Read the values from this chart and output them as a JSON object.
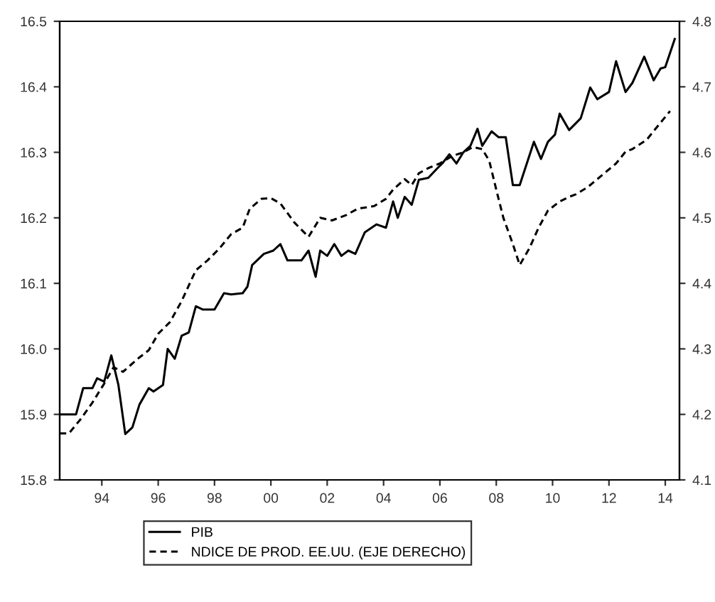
{
  "chart_data": {
    "type": "line",
    "legend": "bottom",
    "grid": false,
    "xlim": [
      "1993-01",
      "2015-01"
    ],
    "xticks": [
      {
        "value": "1994-07",
        "label": "94"
      },
      {
        "value": "1996-07",
        "label": "96"
      },
      {
        "value": "1998-07",
        "label": "98"
      },
      {
        "value": "2000-07",
        "label": "00"
      },
      {
        "value": "2002-07",
        "label": "02"
      },
      {
        "value": "2004-07",
        "label": "04"
      },
      {
        "value": "2006-07",
        "label": "06"
      },
      {
        "value": "2008-07",
        "label": "08"
      },
      {
        "value": "2010-07",
        "label": "10"
      },
      {
        "value": "2012-07",
        "label": "12"
      },
      {
        "value": "2014-07",
        "label": "14"
      }
    ],
    "ylim": [
      15.8,
      16.5
    ],
    "yticks": [
      {
        "value": 15.8,
        "label": "15.8"
      },
      {
        "value": 15.9,
        "label": "15.9"
      },
      {
        "value": 16.0,
        "label": "16.0"
      },
      {
        "value": 16.1,
        "label": "16.1"
      },
      {
        "value": 16.2,
        "label": "16.2"
      },
      {
        "value": 16.3,
        "label": "16.3"
      },
      {
        "value": 16.4,
        "label": "16.4"
      },
      {
        "value": 16.5,
        "label": "16.5"
      }
    ],
    "y2lim": [
      4.1,
      4.8
    ],
    "y2ticks": [
      4.1,
      4.2,
      4.3,
      4.4,
      4.5,
      4.6,
      4.7,
      4.8
    ],
    "series": [
      {
        "name": "PIB",
        "color": "#000000",
        "line_style": "solid",
        "x": [
          "1993-01",
          "1993-08",
          "1993-11",
          "1994-03",
          "1994-05",
          "1994-08",
          "1994-11",
          "1995-02",
          "1995-05",
          "1995-08",
          "1995-11",
          "1996-03",
          "1996-05",
          "1996-09",
          "1996-11",
          "1997-02",
          "1997-05",
          "1997-08",
          "1997-11",
          "1998-02",
          "1998-07",
          "1998-11",
          "1999-02",
          "1999-07",
          "1999-09",
          "1999-11",
          "2000-04",
          "2000-08",
          "2000-11",
          "2001-02",
          "2001-08",
          "2001-11",
          "2002-02",
          "2002-04",
          "2002-07",
          "2002-10",
          "2003-01",
          "2003-04",
          "2003-07",
          "2003-11",
          "2004-04",
          "2004-08",
          "2004-11",
          "2005-01",
          "2005-04",
          "2005-07",
          "2005-10",
          "2006-02",
          "2006-06",
          "2006-08",
          "2006-11",
          "2007-02",
          "2007-05",
          "2007-08",
          "2007-11",
          "2008-01",
          "2008-05",
          "2008-08",
          "2008-11",
          "2009-02",
          "2009-05",
          "2009-08",
          "2009-11",
          "2010-02",
          "2010-05",
          "2010-08",
          "2010-10",
          "2011-02",
          "2011-07",
          "2011-11",
          "2012-02",
          "2012-07",
          "2012-10",
          "2013-02",
          "2013-05",
          "2013-10",
          "2014-02",
          "2014-05",
          "2014-07",
          "2014-11"
        ],
        "values": [
          15.9,
          15.9,
          15.94,
          15.94,
          15.955,
          15.95,
          15.99,
          15.945,
          15.87,
          15.88,
          15.915,
          15.94,
          15.935,
          15.945,
          16.0,
          15.985,
          16.02,
          16.025,
          16.065,
          16.06,
          16.06,
          16.085,
          16.083,
          16.085,
          16.095,
          16.128,
          16.145,
          16.15,
          16.16,
          16.135,
          16.135,
          16.15,
          16.11,
          16.15,
          16.142,
          16.16,
          16.142,
          16.15,
          16.145,
          16.178,
          16.19,
          16.185,
          16.225,
          16.2,
          16.232,
          16.22,
          16.258,
          16.261,
          16.276,
          16.283,
          16.297,
          16.283,
          16.3,
          16.31,
          16.336,
          16.31,
          16.332,
          16.323,
          16.323,
          16.25,
          16.25,
          16.283,
          16.316,
          16.29,
          16.316,
          16.327,
          16.359,
          16.334,
          16.352,
          16.399,
          16.381,
          16.392,
          16.439,
          16.392,
          16.406,
          16.446,
          16.41,
          16.428,
          16.43,
          16.473
        ]
      },
      {
        "name": "NDICE DE PROD. EE.UU. (EJE DERECHO)",
        "color": "#000000",
        "line_style": "dashed",
        "axis": "y2",
        "x": [
          "1993-01",
          "1993-05",
          "1993-10",
          "1994-03",
          "1994-08",
          "1994-12",
          "1995-04",
          "1995-11",
          "1996-03",
          "1996-07",
          "1996-12",
          "1997-05",
          "1997-11",
          "1998-04",
          "1998-09",
          "1999-02",
          "1999-07",
          "1999-10",
          "2000-03",
          "2000-07",
          "2000-11",
          "2001-05",
          "2001-11",
          "2002-04",
          "2002-09",
          "2003-03",
          "2003-08",
          "2004-03",
          "2004-08",
          "2004-11",
          "2005-04",
          "2005-07",
          "2005-10",
          "2006-02",
          "2006-07",
          "2006-12",
          "2007-05",
          "2007-09",
          "2008-01",
          "2008-04",
          "2008-07",
          "2008-10",
          "2009-02",
          "2009-05",
          "2009-09",
          "2010-01",
          "2010-05",
          "2010-10",
          "2011-02",
          "2011-05",
          "2011-10",
          "2012-04",
          "2012-10",
          "2013-02",
          "2013-05",
          "2013-11",
          "2014-04",
          "2014-09"
        ],
        "values": [
          4.171,
          4.171,
          4.193,
          4.218,
          4.247,
          4.272,
          4.265,
          4.287,
          4.298,
          4.323,
          4.341,
          4.373,
          4.42,
          4.435,
          4.453,
          4.475,
          4.485,
          4.514,
          4.529,
          4.53,
          4.522,
          4.493,
          4.471,
          4.5,
          4.496,
          4.504,
          4.514,
          4.518,
          4.529,
          4.543,
          4.559,
          4.55,
          4.568,
          4.576,
          4.583,
          4.594,
          4.6,
          4.608,
          4.605,
          4.587,
          4.543,
          4.5,
          4.46,
          4.428,
          4.453,
          4.485,
          4.511,
          4.525,
          4.532,
          4.536,
          4.547,
          4.565,
          4.583,
          4.601,
          4.605,
          4.619,
          4.641,
          4.663
        ]
      }
    ]
  }
}
